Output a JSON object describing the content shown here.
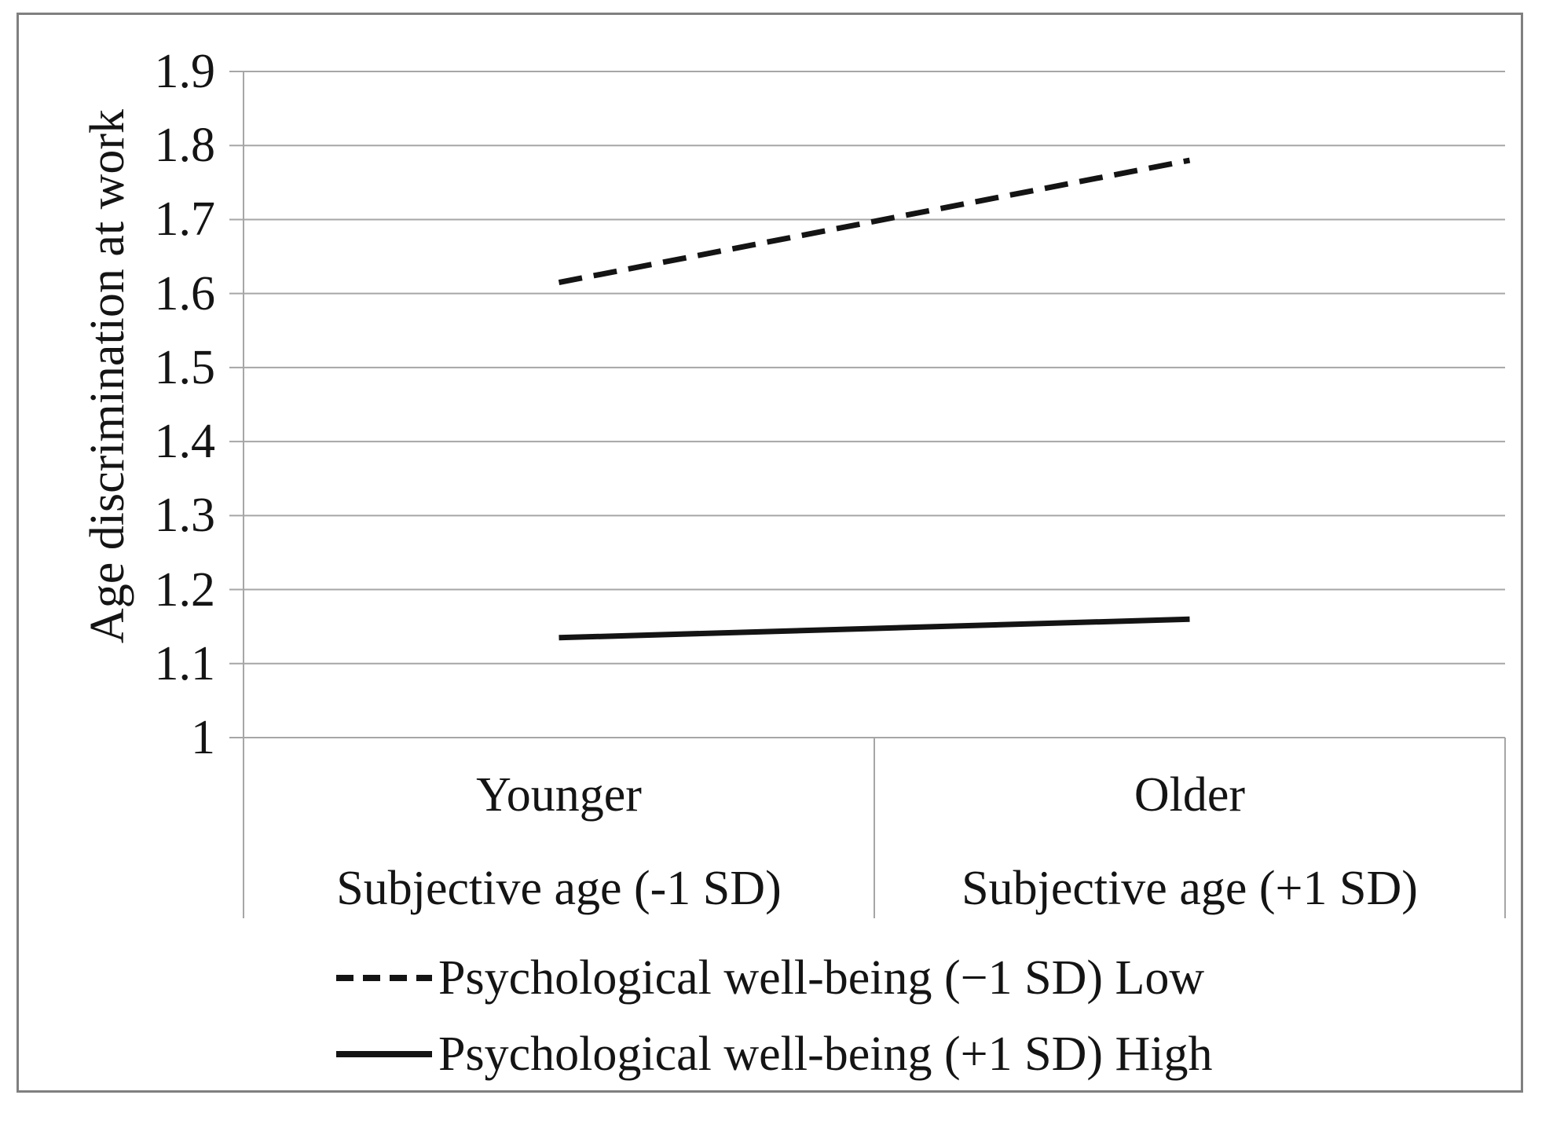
{
  "figure": {
    "background": "#ffffff",
    "border_color": "#808080"
  },
  "chart_data": {
    "type": "line",
    "title": "",
    "ylabel": "Age discrimination at work",
    "xlabel": "",
    "ylim": [
      1,
      1.9
    ],
    "ytick_step": 0.1,
    "yticks": [
      "1.9",
      "1.8",
      "1.7",
      "1.6",
      "1.5",
      "1.4",
      "1.3",
      "1.2",
      "1.1",
      "1"
    ],
    "grid": true,
    "legend_position": "bottom",
    "categories": [
      {
        "line1": "Younger",
        "line2": "Subjective age (-1 SD)"
      },
      {
        "line1": "Older",
        "line2": "Subjective age (+1 SD)"
      }
    ],
    "series": [
      {
        "name": "Psychological well-being (−1 SD) Low",
        "style": "dashed",
        "values": [
          1.615,
          1.78
        ]
      },
      {
        "name": "Psychological well-being (+1 SD) High",
        "style": "solid",
        "values": [
          1.135,
          1.16
        ]
      }
    ],
    "colors": {
      "line": "#141414",
      "grid": "#a6a6a6",
      "text": "#141414"
    }
  }
}
